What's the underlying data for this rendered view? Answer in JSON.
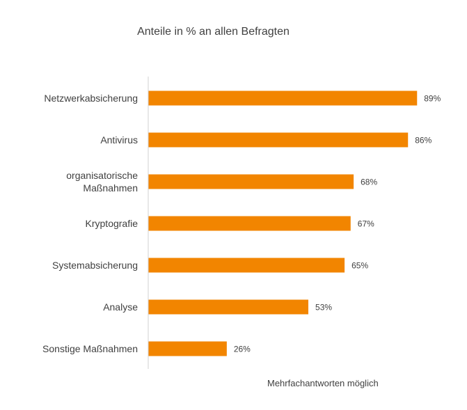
{
  "chart_data": {
    "type": "bar",
    "orientation": "horizontal",
    "title": "Anteile in % an allen Befragten",
    "categories": [
      [
        "Netzwerkabsicherung"
      ],
      [
        "Antivirus"
      ],
      [
        "organisatorische",
        "Maßnahmen"
      ],
      [
        "Kryptografie"
      ],
      [
        "Systemabsicherung"
      ],
      [
        "Analyse"
      ],
      [
        "Sonstige Maßnahmen"
      ]
    ],
    "values": [
      89,
      86,
      68,
      67,
      65,
      53,
      26
    ],
    "value_labels": [
      "89%",
      "86%",
      "68%",
      "67%",
      "65%",
      "53%",
      "26%"
    ],
    "xlabel": "",
    "ylabel": "",
    "xlim": [
      0,
      100
    ],
    "grid": false,
    "bar_color": "#F28500",
    "note": "Mehrfachantworten möglich"
  }
}
